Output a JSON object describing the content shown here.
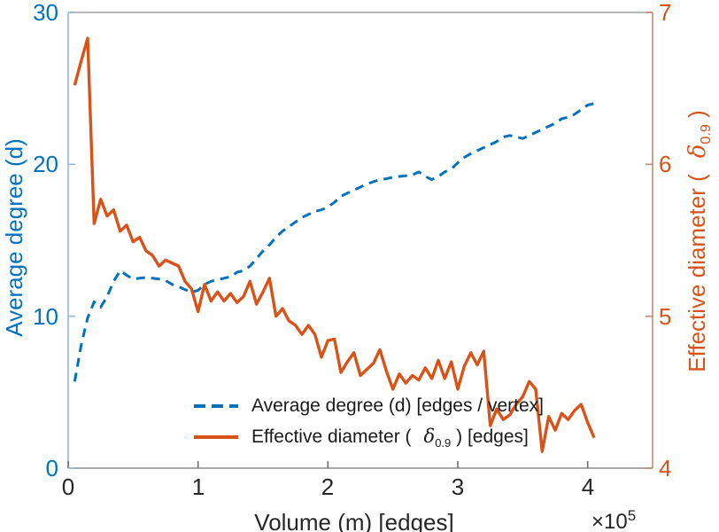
{
  "chart_data": {
    "type": "line",
    "title": "",
    "xlabel": "Volume (m) [edges]",
    "x_multiplier_base": "×10",
    "x_multiplier_exponent": "5",
    "xlim": [
      0,
      4.5
    ],
    "xticks": [
      0,
      1,
      2,
      3,
      4
    ],
    "grid": "off",
    "left_axis": {
      "label": "Average degree (d)",
      "color": "#0072BD",
      "ylim": [
        0,
        30
      ],
      "yticks": [
        0,
        10,
        20,
        30
      ]
    },
    "right_axis": {
      "label_prefix": "Effective diameter (",
      "label_symbol": "δ",
      "label_subscript": "0.9",
      "label_suffix": " )",
      "color": "#D95319",
      "ylim": [
        4,
        7
      ],
      "yticks": [
        4,
        5,
        6,
        7
      ]
    },
    "x": [
      0.05,
      0.1,
      0.15,
      0.2,
      0.25,
      0.3,
      0.35,
      0.4,
      0.45,
      0.5,
      0.55,
      0.6,
      0.65,
      0.7,
      0.75,
      0.8,
      0.85,
      0.9,
      0.95,
      1,
      1.05,
      1.1,
      1.15,
      1.2,
      1.25,
      1.3,
      1.35,
      1.4,
      1.45,
      1.5,
      1.55,
      1.6,
      1.65,
      1.7,
      1.75,
      1.8,
      1.85,
      1.9,
      1.95,
      2,
      2.05,
      2.1,
      2.15,
      2.2,
      2.25,
      2.3,
      2.35,
      2.4,
      2.45,
      2.5,
      2.55,
      2.6,
      2.65,
      2.7,
      2.75,
      2.8,
      2.85,
      2.9,
      2.95,
      3,
      3.05,
      3.1,
      3.15,
      3.2,
      3.25,
      3.3,
      3.35,
      3.4,
      3.45,
      3.5,
      3.55,
      3.6,
      3.65,
      3.7,
      3.75,
      3.8,
      3.85,
      3.9,
      3.95,
      4,
      4.05
    ],
    "series": [
      {
        "name": "Average degree (d) [edges / vertex]",
        "axis": "left",
        "color": "#0072BD",
        "style": "dashed",
        "values": [
          5.7,
          8.1,
          9.9,
          10.95,
          10.6,
          11.3,
          12.3,
          13.0,
          12.7,
          12.45,
          12.5,
          12.55,
          12.5,
          12.45,
          12.35,
          12.1,
          11.95,
          11.75,
          11.6,
          11.7,
          12.1,
          12.3,
          12.4,
          12.5,
          12.6,
          12.9,
          13.0,
          13.3,
          13.8,
          14.3,
          14.7,
          15.2,
          15.6,
          15.9,
          16.2,
          16.5,
          16.7,
          16.9,
          17.0,
          17.2,
          17.5,
          17.9,
          18.1,
          18.3,
          18.5,
          18.7,
          18.85,
          19.0,
          19.05,
          19.15,
          19.2,
          19.25,
          19.3,
          19.5,
          19.2,
          19.0,
          19.2,
          19.5,
          19.7,
          20.1,
          20.45,
          20.7,
          20.9,
          21.1,
          21.3,
          21.5,
          21.8,
          21.9,
          21.8,
          21.7,
          21.9,
          22.1,
          22.3,
          22.5,
          22.7,
          23.0,
          23.1,
          23.3,
          23.6,
          23.9,
          24.0
        ]
      },
      {
        "name": "Effective diameter ( δ0.9 ) [edges]",
        "axis": "right",
        "color": "#D95319",
        "style": "solid",
        "values": [
          6.52,
          6.68,
          6.83,
          5.61,
          5.77,
          5.66,
          5.7,
          5.56,
          5.6,
          5.49,
          5.52,
          5.43,
          5.4,
          5.33,
          5.37,
          5.35,
          5.33,
          5.23,
          5.18,
          5.03,
          5.21,
          5.1,
          5.16,
          5.1,
          5.15,
          5.09,
          5.13,
          5.23,
          5.08,
          5.16,
          5.25,
          5.0,
          5.05,
          4.97,
          4.94,
          4.88,
          4.94,
          4.88,
          4.73,
          4.84,
          4.85,
          4.63,
          4.7,
          4.76,
          4.61,
          4.65,
          4.69,
          4.78,
          4.64,
          4.52,
          4.62,
          4.56,
          4.61,
          4.58,
          4.66,
          4.59,
          4.71,
          4.59,
          4.7,
          4.52,
          4.67,
          4.76,
          4.68,
          4.77,
          4.28,
          4.39,
          4.32,
          4.35,
          4.42,
          4.47,
          4.57,
          4.52,
          4.11,
          4.34,
          4.25,
          4.36,
          4.32,
          4.38,
          4.42,
          4.3,
          4.2
        ]
      }
    ],
    "legend": {
      "position": "south-inside",
      "box": "off",
      "items": [
        {
          "label": "Average degree (d) [edges / vertex]"
        },
        {
          "label_prefix": "Effective diameter (",
          "label_symbol": "δ",
          "label_subscript": "0.9",
          "label_suffix": " ) [edges]"
        }
      ]
    }
  }
}
